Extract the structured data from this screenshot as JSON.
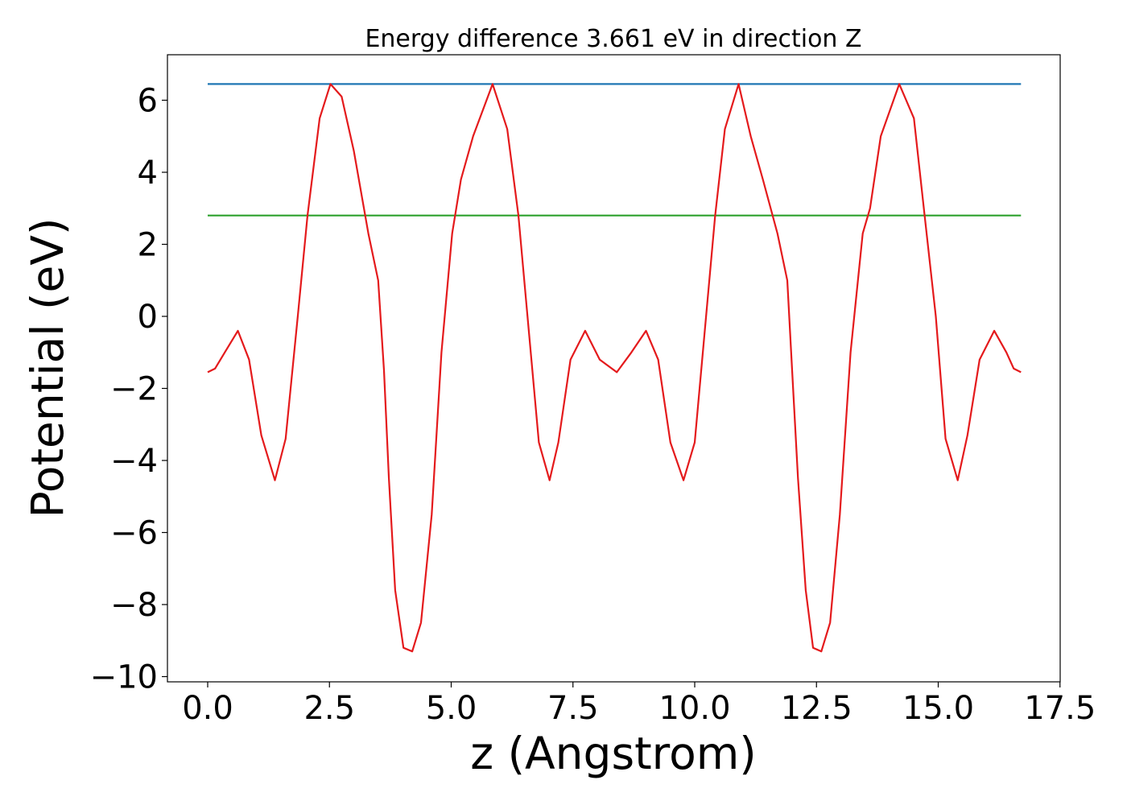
{
  "chart_data": {
    "type": "line",
    "title": "Energy difference 3.661 eV in direction Z",
    "xlabel": "z (Angstrom)",
    "ylabel": "Potential (eV)",
    "xlim": [
      -1.0,
      17.5
    ],
    "ylim": [
      -10.0,
      7.0
    ],
    "x_ticks": [
      0.0,
      2.5,
      5.0,
      7.5,
      10.0,
      12.5,
      15.0,
      17.5
    ],
    "x_tick_labels": [
      "0.0",
      "2.5",
      "5.0",
      "7.5",
      "10.0",
      "12.5",
      "15.0",
      "17.5"
    ],
    "y_ticks": [
      6,
      4,
      2,
      0,
      -2,
      -4,
      -6,
      -8,
      -10
    ],
    "y_tick_labels": [
      "6",
      "4",
      "2",
      "0",
      "−2",
      "−4",
      "−6",
      "−8",
      "−10"
    ],
    "grid": false,
    "series": [
      {
        "color": "#1f77b4",
        "x": [
          0.0,
          16.7
        ],
        "y": [
          6.45,
          6.45
        ]
      },
      {
        "color": "#2ca02c",
        "x": [
          0.0,
          16.7
        ],
        "y": [
          2.8,
          2.8
        ]
      },
      {
        "color": "#e41a1c",
        "x": [
          0.0,
          0.15,
          0.35,
          0.62,
          0.85,
          1.1,
          1.38,
          1.6,
          1.85,
          2.05,
          2.3,
          2.52,
          2.75,
          3.0,
          3.3,
          3.5,
          3.62,
          3.72,
          3.85,
          4.02,
          4.2,
          4.38,
          4.6,
          4.8,
          5.02,
          5.2,
          5.45,
          5.85,
          6.15,
          6.38,
          6.6,
          6.8,
          7.02,
          7.2,
          7.45,
          7.75,
          8.05,
          8.4,
          8.7,
          9.0,
          9.25,
          9.5,
          9.77,
          10.0,
          10.2,
          10.42,
          10.62,
          10.9,
          11.15,
          11.4,
          11.7,
          11.9,
          12.0,
          12.12,
          12.28,
          12.43,
          12.6,
          12.78,
          12.98,
          13.2,
          13.45,
          13.6,
          13.82,
          14.2,
          14.5,
          14.72,
          14.95,
          15.15,
          15.4,
          15.6,
          15.85,
          16.15,
          16.4,
          16.55,
          16.7
        ],
        "y": [
          -1.55,
          -1.45,
          -1.0,
          -0.4,
          -1.2,
          -3.3,
          -4.55,
          -3.4,
          0.0,
          2.8,
          5.5,
          6.45,
          6.1,
          4.6,
          2.3,
          1.0,
          -1.5,
          -4.5,
          -7.6,
          -9.2,
          -9.3,
          -8.5,
          -5.5,
          -1.0,
          2.3,
          3.8,
          5.0,
          6.45,
          5.2,
          2.8,
          -0.5,
          -3.5,
          -4.55,
          -3.5,
          -1.2,
          -0.4,
          -1.2,
          -1.55,
          -1.0,
          -0.4,
          -1.2,
          -3.5,
          -4.55,
          -3.5,
          -0.5,
          2.8,
          5.2,
          6.45,
          5.0,
          3.8,
          2.3,
          1.0,
          -1.5,
          -4.5,
          -7.6,
          -9.2,
          -9.3,
          -8.5,
          -5.5,
          -1.0,
          2.3,
          3.0,
          5.0,
          6.45,
          5.5,
          2.8,
          0.0,
          -3.4,
          -4.55,
          -3.3,
          -1.2,
          -0.4,
          -1.0,
          -1.45,
          -1.55
        ]
      }
    ]
  }
}
